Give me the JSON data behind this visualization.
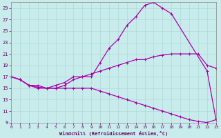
{
  "xlabel": "Windchill (Refroidissement éolien,°C)",
  "bg_color": "#c8ecec",
  "grid_color": "#b0d8d8",
  "line_color": "#aa00aa",
  "xlim": [
    0,
    23
  ],
  "ylim": [
    9,
    30
  ],
  "xticks": [
    0,
    1,
    2,
    3,
    4,
    5,
    6,
    7,
    8,
    9,
    10,
    11,
    12,
    13,
    14,
    15,
    16,
    17,
    18,
    19,
    20,
    21,
    22,
    23
  ],
  "yticks": [
    9,
    11,
    13,
    15,
    17,
    19,
    21,
    23,
    25,
    27,
    29
  ],
  "curve_upper_x": [
    0,
    1,
    2,
    3,
    4,
    5,
    6,
    7,
    8,
    9,
    10,
    11,
    12,
    13,
    14,
    15,
    16,
    17,
    18,
    22,
    23
  ],
  "curve_upper_y": [
    17,
    16.5,
    15.5,
    15.5,
    15,
    15.5,
    16,
    17,
    17,
    17,
    19.5,
    22,
    23.5,
    26,
    27.5,
    29.5,
    30,
    29,
    28,
    18,
    9.5
  ],
  "curve_mid_x": [
    0,
    1,
    2,
    3,
    4,
    5,
    6,
    7,
    8,
    9,
    10,
    11,
    12,
    13,
    14,
    15,
    16,
    17,
    18,
    19,
    20,
    21,
    22,
    23
  ],
  "curve_mid_y": [
    17,
    16.5,
    15.5,
    15,
    15,
    15,
    15.5,
    16.5,
    17,
    17.5,
    18,
    18.5,
    19,
    19.5,
    20,
    20,
    20.5,
    20.8,
    21,
    21,
    21,
    21,
    19,
    18.5
  ],
  "curve_lower_x": [
    0,
    1,
    2,
    3,
    4,
    5,
    6,
    7,
    8,
    9,
    10,
    11,
    12,
    13,
    14,
    15,
    16,
    17,
    18,
    19,
    20,
    21,
    22,
    23
  ],
  "curve_lower_y": [
    17,
    16.5,
    15.5,
    15.2,
    15,
    15,
    15,
    15,
    15,
    15,
    14.5,
    14,
    13.5,
    13,
    12.5,
    12,
    11.5,
    11,
    10.5,
    10,
    9.5,
    9.2,
    9,
    9.5
  ]
}
